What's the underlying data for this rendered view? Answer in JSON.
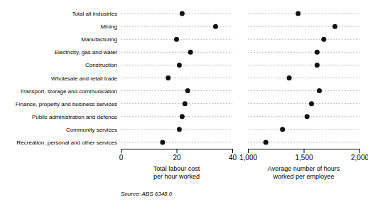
{
  "chart_data": [
    {
      "type": "dot",
      "orientation": "horizontal",
      "categories": [
        "Total all industries",
        "Mining",
        "Manufacturing",
        "Electricity, gas and water",
        "Construction",
        "Wholesale and retail trade",
        "Transport, storage and communication",
        "Finance, property and business services",
        "Public administration and defence",
        "Community services",
        "Recreation, personal and other services"
      ],
      "values": [
        22,
        34,
        20,
        25,
        21,
        17,
        24,
        23,
        22,
        21,
        15
      ],
      "color": "#111111",
      "xlabel": "Total labour cost\nper hour worked",
      "xlim": [
        0,
        40
      ],
      "xticks": [
        0,
        20,
        40
      ],
      "grid": true,
      "annotations": [
        "Source: ABS 6348.0"
      ]
    },
    {
      "type": "dot",
      "orientation": "horizontal",
      "categories": [
        "Total all industries",
        "Mining",
        "Manufacturing",
        "Electricity, gas and water",
        "Construction",
        "Wholesale and retail trade",
        "Transport, storage and communication",
        "Finance, property and business services",
        "Public administration and defence",
        "Community services",
        "Recreation, personal and other services"
      ],
      "values": [
        1450,
        1780,
        1680,
        1620,
        1620,
        1370,
        1640,
        1570,
        1530,
        1310,
        1160
      ],
      "color": "#111111",
      "xlabel": "Average number of hours\nworked per employee",
      "xlim": [
        1000,
        2000
      ],
      "xticks": [
        {
          "value": 1000,
          "label": "1,000"
        },
        {
          "value": 1500,
          "label": "1,500"
        },
        {
          "value": 2000,
          "label": "2,000"
        }
      ],
      "grid": true,
      "tick_labels": "x"
    }
  ]
}
